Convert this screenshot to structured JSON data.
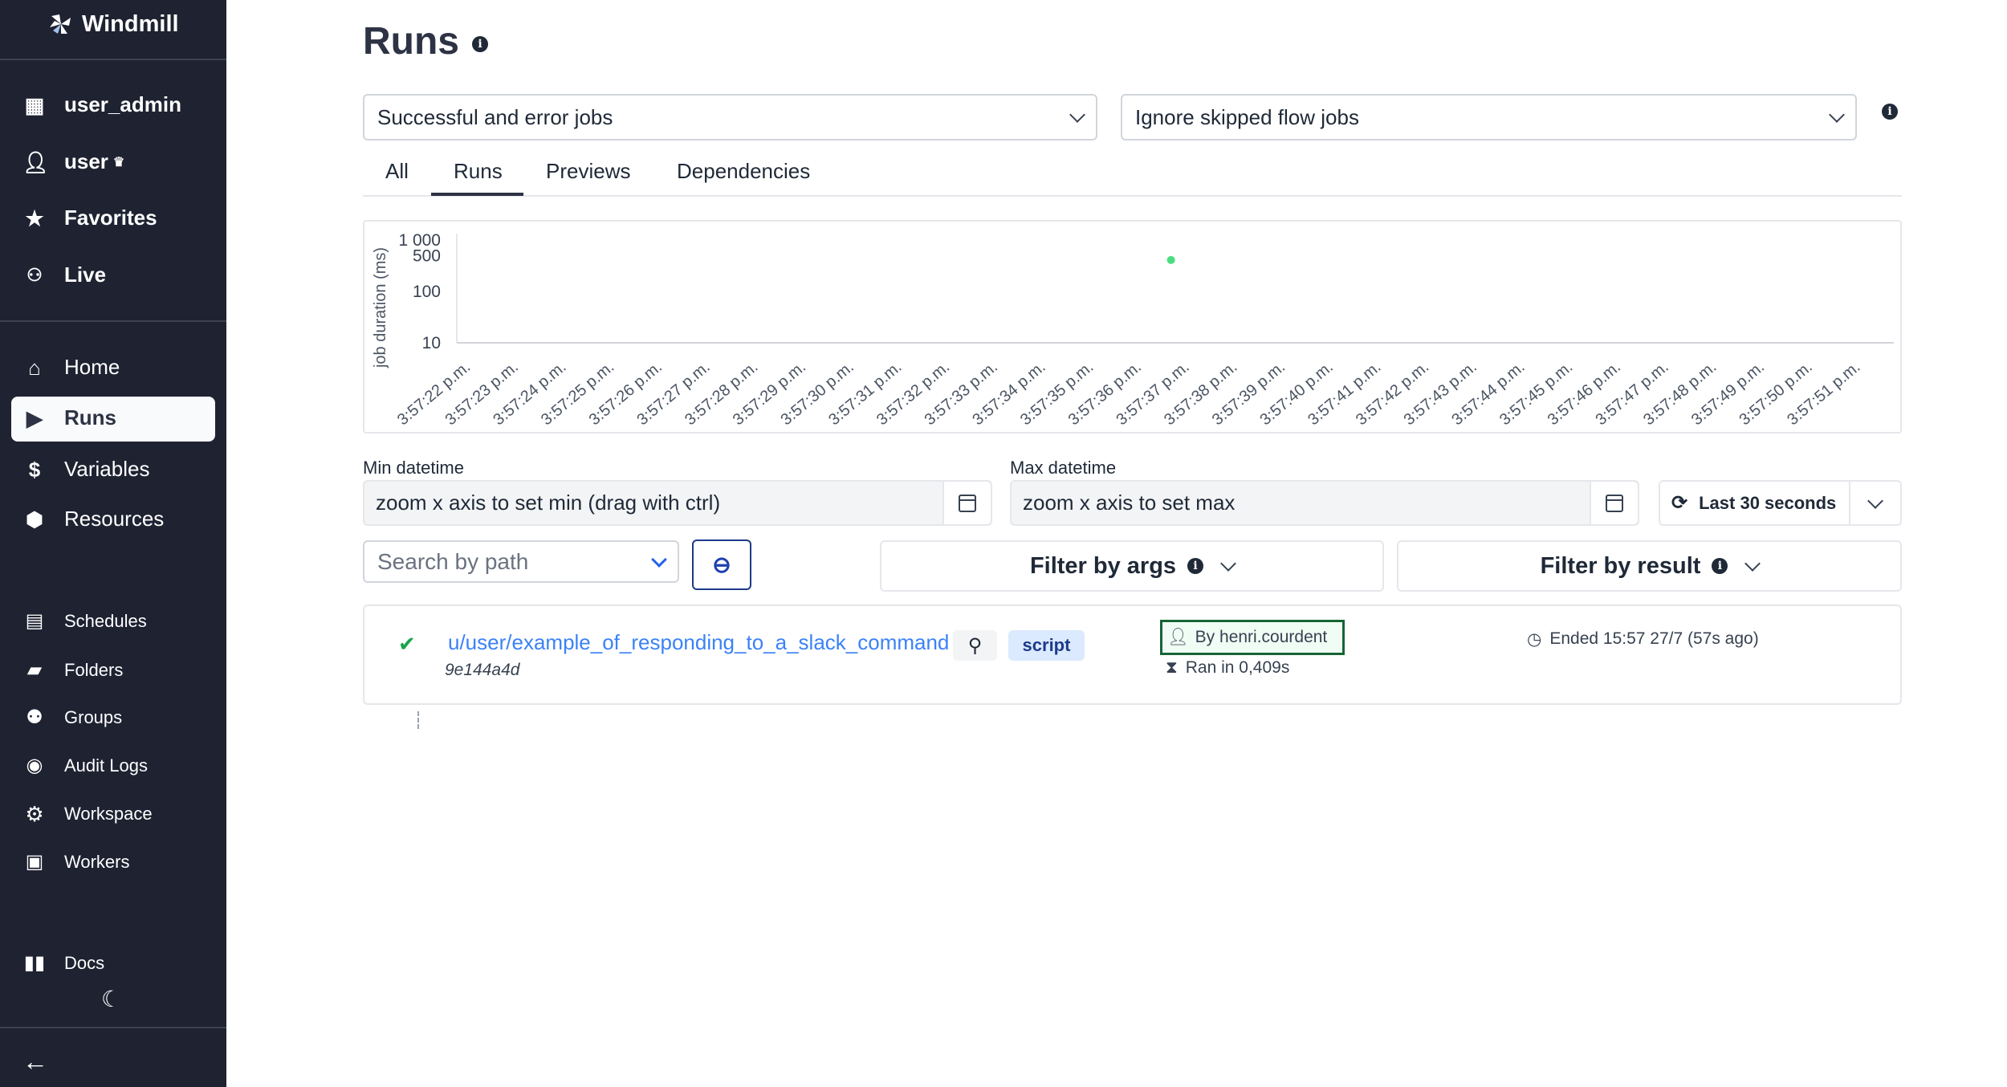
{
  "sidebar": {
    "brand": "Windmill",
    "workspace": "user_admin",
    "user": "user",
    "favorites": "Favorites",
    "live": "Live",
    "nav": [
      {
        "label": "Home",
        "icon": "home-icon"
      },
      {
        "label": "Runs",
        "icon": "play-icon",
        "active": true
      },
      {
        "label": "Variables",
        "icon": "dollar-icon"
      },
      {
        "label": "Resources",
        "icon": "cubes-icon"
      }
    ],
    "secondary": [
      {
        "label": "Schedules",
        "icon": "calendar-icon"
      },
      {
        "label": "Folders",
        "icon": "folder-icon"
      },
      {
        "label": "Groups",
        "icon": "users-icon"
      },
      {
        "label": "Audit Logs",
        "icon": "eye-icon"
      },
      {
        "label": "Workspace",
        "icon": "gear-icon"
      },
      {
        "label": "Workers",
        "icon": "robot-icon"
      }
    ],
    "docs": "Docs"
  },
  "page": {
    "title": "Runs"
  },
  "filters": {
    "job_kind": "Successful and error jobs",
    "skipped": "Ignore skipped flow jobs"
  },
  "tabs": [
    {
      "label": "All"
    },
    {
      "label": "Runs",
      "active": true
    },
    {
      "label": "Previews"
    },
    {
      "label": "Dependencies"
    }
  ],
  "chart_data": {
    "type": "scatter",
    "ylabel": "job duration (ms)",
    "yscale": "log",
    "yticks": [
      {
        "v": 10,
        "label": "10"
      },
      {
        "v": 100,
        "label": "100"
      },
      {
        "v": 500,
        "label": "500"
      },
      {
        "v": 1000,
        "label": "1 000"
      }
    ],
    "xticks": [
      "3:57:22 p.m.",
      "3:57:23 p.m.",
      "3:57:24 p.m.",
      "3:57:25 p.m.",
      "3:57:26 p.m.",
      "3:57:27 p.m.",
      "3:57:28 p.m.",
      "3:57:29 p.m.",
      "3:57:30 p.m.",
      "3:57:31 p.m.",
      "3:57:32 p.m.",
      "3:57:33 p.m.",
      "3:57:34 p.m.",
      "3:57:35 p.m.",
      "3:57:36 p.m.",
      "3:57:37 p.m.",
      "3:57:38 p.m.",
      "3:57:39 p.m.",
      "3:57:40 p.m.",
      "3:57:41 p.m.",
      "3:57:42 p.m.",
      "3:57:43 p.m.",
      "3:57:44 p.m.",
      "3:57:45 p.m.",
      "3:57:46 p.m.",
      "3:57:47 p.m.",
      "3:57:48 p.m.",
      "3:57:49 p.m.",
      "3:57:50 p.m.",
      "3:57:51 p.m."
    ],
    "points": [
      {
        "x": "3:57:36.6 p.m.",
        "y": 409,
        "color": "#4ade80"
      }
    ],
    "grid": false
  },
  "datetime": {
    "min_label": "Min datetime",
    "min_placeholder": "zoom x axis to set min (drag with ctrl)",
    "max_label": "Max datetime",
    "max_placeholder": "zoom x axis to set max",
    "range": "Last 30 seconds"
  },
  "search": {
    "placeholder": "Search by path"
  },
  "filter_args": "Filter by args",
  "filter_result": "Filter by result",
  "runs": [
    {
      "status": "success",
      "path": "u/user/example_of_responding_to_a_slack_command",
      "hash": "9e144a4d",
      "kind": "script",
      "by": "By henri.courdent",
      "duration": "Ran in 0,409s",
      "ended": "Ended 15:57 27/7 (57s ago)"
    }
  ],
  "colors": {
    "sidebar": "#1e2231",
    "link": "#3b82f6",
    "success": "#16a34a",
    "badge": "#dbeafe"
  }
}
